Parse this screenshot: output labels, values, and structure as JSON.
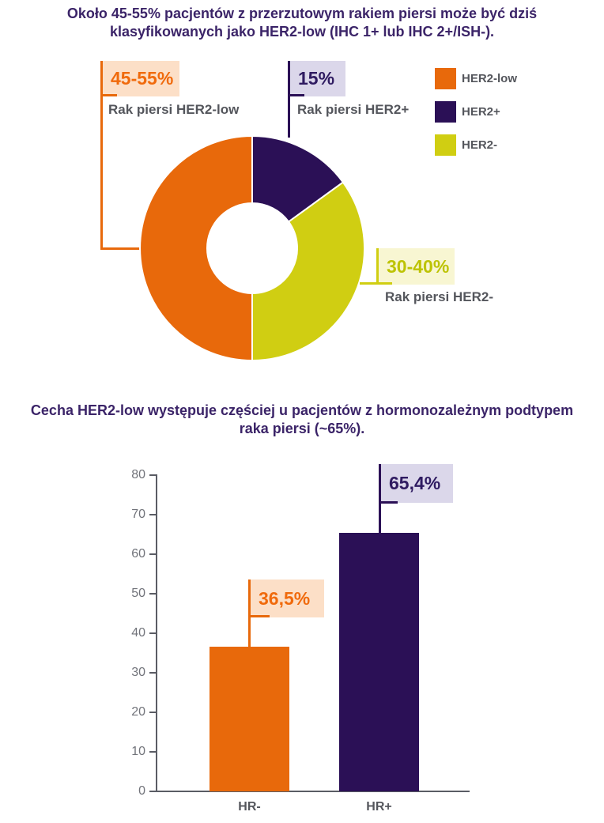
{
  "palette": {
    "orange": "#E8690B",
    "purple": "#2B1056",
    "yellow": "#D0CE12",
    "peach_bg": "#FCDFC7",
    "lavender_bg": "#DBD7EA",
    "pale_yellow_bg": "#F8F6D2",
    "orange_text": "#F06A0C",
    "purple_text": "#2F1B61",
    "yellow_text": "#BDC303",
    "gray_text": "#54565C",
    "axis_gray": "#5A5C64",
    "tick_gray": "#71737A",
    "title_purple": "#3B2468"
  },
  "donut_section": {
    "title": "Około 45-55% pacjentów z przerzutowym rakiem piersi może być dziś\nklasyfikowanych jako HER2-low (IHC 1+ lub IHC 2+/ISH-).",
    "callouts": {
      "her2_low": {
        "value": "45-55%",
        "label": "Rak piersi HER2-low"
      },
      "her2_plus": {
        "value": "15%",
        "label": "Rak piersi HER2+"
      },
      "her2_minus": {
        "value": "30-40%",
        "label": "Rak piersi HER2-"
      }
    },
    "legend": [
      {
        "id": "her2-low",
        "label": "HER2-low",
        "color": "#E8690B"
      },
      {
        "id": "her2-plus",
        "label": "HER2+",
        "color": "#2B1056"
      },
      {
        "id": "her2-minus",
        "label": "HER2-",
        "color": "#D0CE12"
      }
    ],
    "chart_data": {
      "type": "pie",
      "donut": true,
      "start_at_top": true,
      "direction": "clockwise",
      "inner_radius_ratio": 0.4,
      "slices": [
        {
          "id": "her2-plus",
          "label": "HER2+",
          "value": 15,
          "display_value": "15%",
          "color": "#2B1056"
        },
        {
          "id": "her2-minus",
          "label": "HER2-",
          "value": 35,
          "display_value": "30-40%",
          "color": "#D0CE12"
        },
        {
          "id": "her2-low",
          "label": "HER2-low",
          "value": 50,
          "display_value": "45-55%",
          "color": "#E8690B"
        }
      ]
    }
  },
  "bar_section": {
    "title": "Cecha HER2-low występuje częściej u pacjentów z hormonozależnym podtypem\nraka piersi (~65%).",
    "value_labels": {
      "hr_minus": "36,5%",
      "hr_plus": "65,4%"
    },
    "chart_data": {
      "type": "bar",
      "categories": [
        "HR-",
        "HR+"
      ],
      "values": [
        36.5,
        65.4
      ],
      "bar_colors": [
        "#E8690B",
        "#2B1056"
      ],
      "value_labels": [
        "36,5%",
        "65,4%"
      ],
      "ylim": [
        0,
        80
      ],
      "yticks": [
        0,
        10,
        20,
        30,
        40,
        50,
        60,
        70,
        80
      ],
      "grid": false,
      "legend": false
    }
  }
}
